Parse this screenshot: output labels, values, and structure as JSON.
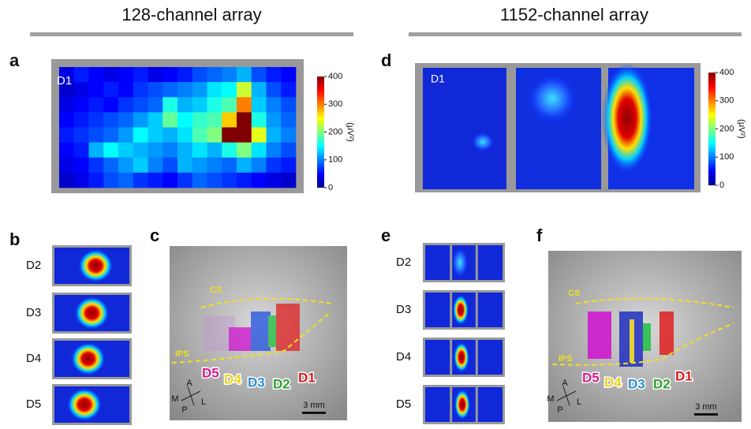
{
  "header": {
    "left_title": "128-channel array",
    "right_title": "1152-channel array"
  },
  "panels": {
    "a": {
      "label": "a",
      "tag": "D1",
      "heatmap": [
        [
          40,
          60,
          50,
          40,
          50,
          60,
          40,
          50,
          60,
          80,
          90,
          100,
          120,
          80,
          60,
          50
        ],
        [
          30,
          40,
          50,
          60,
          50,
          70,
          80,
          90,
          100,
          110,
          140,
          150,
          230,
          120,
          80,
          60
        ],
        [
          40,
          50,
          60,
          50,
          70,
          80,
          90,
          160,
          120,
          130,
          160,
          180,
          300,
          130,
          100,
          80
        ],
        [
          50,
          60,
          70,
          80,
          90,
          110,
          130,
          190,
          150,
          170,
          180,
          270,
          400,
          160,
          110,
          90
        ],
        [
          60,
          70,
          80,
          90,
          110,
          150,
          130,
          120,
          140,
          180,
          200,
          400,
          400,
          240,
          120,
          100
        ],
        [
          50,
          60,
          120,
          150,
          130,
          120,
          110,
          100,
          120,
          140,
          120,
          160,
          200,
          140,
          100,
          80
        ],
        [
          40,
          50,
          70,
          90,
          110,
          130,
          100,
          80,
          120,
          110,
          100,
          90,
          120,
          100,
          70,
          60
        ],
        [
          30,
          40,
          60,
          80,
          90,
          70,
          60,
          50,
          70,
          90,
          80,
          70,
          60,
          50,
          40,
          30
        ]
      ],
      "colorbar": {
        "lim": [
          0,
          400
        ],
        "ticks": [
          0,
          100,
          200,
          300,
          400
        ],
        "unit": "(μV²)"
      }
    },
    "b": {
      "label": "b",
      "rows": [
        "D2",
        "D3",
        "D4",
        "D5"
      ]
    },
    "c": {
      "label": "c",
      "sulci": [
        "CS",
        "IPS"
      ],
      "digits": [
        "D5",
        "D4",
        "D3",
        "D2",
        "D1"
      ],
      "compass": [
        "M",
        "A",
        "L",
        "P"
      ],
      "scale": "3 mm"
    },
    "d": {
      "label": "d",
      "tag": "D1",
      "colorbar": {
        "lim": [
          0,
          400
        ],
        "ticks": [
          0,
          100,
          200,
          300,
          400
        ],
        "unit": "(μV²)"
      }
    },
    "e": {
      "label": "e",
      "rows": [
        "D2",
        "D3",
        "D4",
        "D5"
      ]
    },
    "f": {
      "label": "f",
      "sulci": [
        "CS",
        "IPS"
      ],
      "digits": [
        "D5",
        "D4",
        "D3",
        "D2",
        "D1"
      ],
      "compass": [
        "M",
        "A",
        "L",
        "P"
      ],
      "scale": "3 mm"
    }
  }
}
